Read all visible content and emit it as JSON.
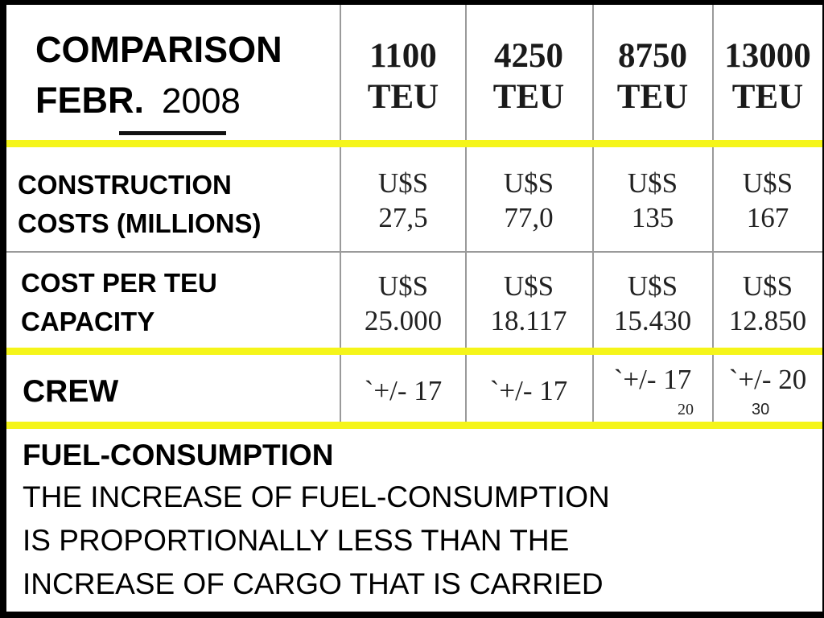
{
  "title": {
    "line1": "COMPARISON",
    "line2_month": "FEBR.",
    "line2_year": "2008"
  },
  "columns": [
    {
      "number": "1100",
      "unit": "TEU"
    },
    {
      "number": "4250",
      "unit": "TEU"
    },
    {
      "number": "8750",
      "unit": "TEU"
    },
    {
      "number": "13000",
      "unit": "TEU"
    }
  ],
  "rows": {
    "construction": {
      "label_line1": "CONSTRUCTION",
      "label_line2": "COSTS  (MILLIONS)",
      "cells": [
        {
          "currency": "U$S",
          "value": "27,5"
        },
        {
          "currency": "U$S",
          "value": "77,0"
        },
        {
          "currency": "U$S",
          "value": "135"
        },
        {
          "currency": "U$S",
          "value": "167"
        }
      ]
    },
    "cost_per_teu": {
      "label_line1": "COST  PER  TEU",
      "label_line2": "CAPACITY",
      "cells": [
        {
          "currency": "U$S",
          "value": "25.000"
        },
        {
          "currency": "U$S",
          "value": "18.117"
        },
        {
          "currency": "U$S",
          "value": "15.430"
        },
        {
          "currency": "U$S",
          "value": "12.850"
        }
      ]
    },
    "crew": {
      "label": "CREW",
      "cells": [
        "`+/- 17",
        "`+/- 17",
        "`+/- 17",
        "`+/- 20"
      ],
      "footnote_small": "20",
      "footnote_right": "30"
    }
  },
  "fuel": {
    "heading": "FUEL-CONSUMPTION",
    "line1": "THE  INCREASE  OF  FUEL-CONSUMPTION",
    "line2": "IS  PROPORTIONALLY  LESS  THAN  THE",
    "line3": "INCREASE  OF  CARGO  THAT  IS  CARRIED"
  },
  "colors": {
    "background": "#000000",
    "slide": "#ffffff",
    "highlight_line": "#f5f51a",
    "grid_line": "#9a9a9a"
  }
}
